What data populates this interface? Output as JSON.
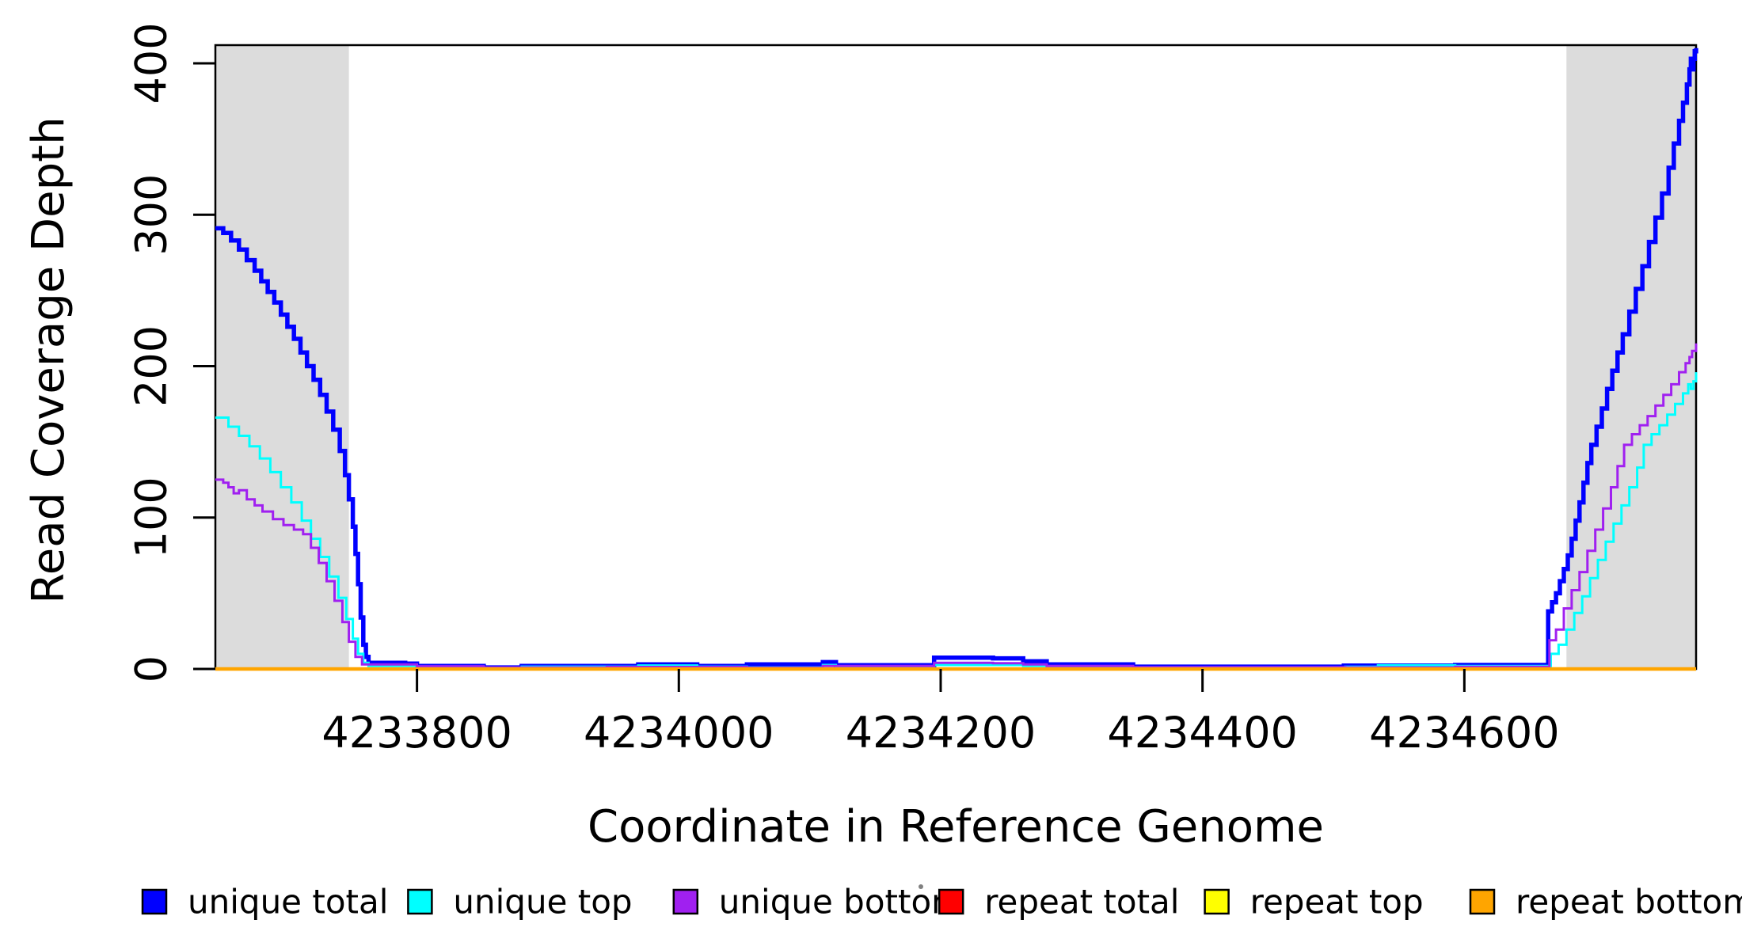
{
  "figure": {
    "background": "#ffffff"
  },
  "chart_data": {
    "type": "line",
    "title": "",
    "xlabel": "Coordinate in Reference Genome",
    "ylabel": "Read Coverage Depth",
    "xlim": [
      4233646,
      4234777
    ],
    "ylim": [
      0,
      412
    ],
    "x_ticks": [
      4233800,
      4234000,
      4234200,
      4234400,
      4234600
    ],
    "y_ticks": [
      0,
      100,
      200,
      300,
      400
    ],
    "grid": false,
    "legend_position": "bottom",
    "box_color": "#000000",
    "shaded_regions": [
      {
        "x0": 4233646,
        "x1": 4233748,
        "color": "#DCDCDC"
      },
      {
        "x0": 4234678,
        "x1": 4234777,
        "color": "#DCDCDC"
      }
    ],
    "series": [
      {
        "name": "unique total",
        "color": "#0000FF",
        "width": 5.5,
        "points": [
          [
            4233646,
            291
          ],
          [
            4233652,
            288
          ],
          [
            4233658,
            283
          ],
          [
            4233664,
            277
          ],
          [
            4233670,
            270
          ],
          [
            4233676,
            263
          ],
          [
            4233681,
            256
          ],
          [
            4233686,
            249
          ],
          [
            4233691,
            242
          ],
          [
            4233696,
            234
          ],
          [
            4233701,
            226
          ],
          [
            4233706,
            218
          ],
          [
            4233711,
            209
          ],
          [
            4233716,
            200
          ],
          [
            4233721,
            191
          ],
          [
            4233726,
            181
          ],
          [
            4233731,
            170
          ],
          [
            4233736,
            158
          ],
          [
            4233741,
            144
          ],
          [
            4233745,
            128
          ],
          [
            4233748,
            112
          ],
          [
            4233751,
            94
          ],
          [
            4233753,
            76
          ],
          [
            4233755,
            56
          ],
          [
            4233757,
            34
          ],
          [
            4233759,
            16
          ],
          [
            4233761,
            8
          ],
          [
            4233763,
            4
          ],
          [
            4233791,
            3.5
          ],
          [
            4233800,
            2
          ],
          [
            4233851,
            1
          ],
          [
            4233880,
            2
          ],
          [
            4233969,
            3
          ],
          [
            4234014,
            2
          ],
          [
            4234052,
            3
          ],
          [
            4234110,
            4.5
          ],
          [
            4234120,
            2.5
          ],
          [
            4234195,
            7.5
          ],
          [
            4234240,
            7
          ],
          [
            4234263,
            5
          ],
          [
            4234281,
            3
          ],
          [
            4234347,
            1.5
          ],
          [
            4234508,
            2.2
          ],
          [
            4234593,
            2.6
          ],
          [
            4234664,
            38
          ],
          [
            4234667,
            44
          ],
          [
            4234670,
            50
          ],
          [
            4234673,
            58
          ],
          [
            4234676,
            66
          ],
          [
            4234679,
            75
          ],
          [
            4234682,
            86
          ],
          [
            4234685,
            98
          ],
          [
            4234688,
            110
          ],
          [
            4234691,
            123
          ],
          [
            4234694,
            136
          ],
          [
            4234697,
            148
          ],
          [
            4234701,
            160
          ],
          [
            4234705,
            172
          ],
          [
            4234709,
            185
          ],
          [
            4234713,
            197
          ],
          [
            4234717,
            209
          ],
          [
            4234721,
            221
          ],
          [
            4234726,
            236
          ],
          [
            4234731,
            251
          ],
          [
            4234736,
            266
          ],
          [
            4234741,
            282
          ],
          [
            4234746,
            298
          ],
          [
            4234751,
            314
          ],
          [
            4234756,
            331
          ],
          [
            4234760,
            347
          ],
          [
            4234764,
            362
          ],
          [
            4234767,
            374
          ],
          [
            4234770,
            386
          ],
          [
            4234772,
            396
          ],
          [
            4234773,
            403
          ],
          [
            4234774,
            396
          ],
          [
            4234775,
            403
          ],
          [
            4234776,
            408
          ],
          [
            4234777,
            410
          ]
        ]
      },
      {
        "name": "unique top",
        "color": "#00FFFF",
        "width": 3,
        "points": [
          [
            4233646,
            166
          ],
          [
            4233656,
            160
          ],
          [
            4233664,
            154
          ],
          [
            4233672,
            147
          ],
          [
            4233680,
            139
          ],
          [
            4233688,
            130
          ],
          [
            4233696,
            120
          ],
          [
            4233704,
            110
          ],
          [
            4233712,
            98
          ],
          [
            4233719,
            86
          ],
          [
            4233726,
            74
          ],
          [
            4233733,
            61
          ],
          [
            4233740,
            47
          ],
          [
            4233746,
            33
          ],
          [
            4233751,
            20
          ],
          [
            4233755,
            10
          ],
          [
            4233759,
            4
          ],
          [
            4233763,
            2
          ],
          [
            4233800,
            1
          ],
          [
            4233851,
            0.5
          ],
          [
            4233880,
            1.5
          ],
          [
            4233969,
            2.3
          ],
          [
            4234014,
            1.5
          ],
          [
            4234052,
            1
          ],
          [
            4234110,
            2.6
          ],
          [
            4234120,
            1.8
          ],
          [
            4234195,
            2.6
          ],
          [
            4234263,
            2
          ],
          [
            4234281,
            1.5
          ],
          [
            4234347,
            0.8
          ],
          [
            4234509,
            1.4
          ],
          [
            4234534,
            2.4
          ],
          [
            4234593,
            2
          ],
          [
            4234666,
            10
          ],
          [
            4234672,
            16
          ],
          [
            4234678,
            26
          ],
          [
            4234684,
            37
          ],
          [
            4234690,
            48
          ],
          [
            4234696,
            60
          ],
          [
            4234702,
            72
          ],
          [
            4234708,
            84
          ],
          [
            4234714,
            96
          ],
          [
            4234720,
            108
          ],
          [
            4234726,
            120
          ],
          [
            4234732,
            133
          ],
          [
            4234737,
            148
          ],
          [
            4234743,
            155
          ],
          [
            4234749,
            161
          ],
          [
            4234755,
            168
          ],
          [
            4234761,
            175
          ],
          [
            4234767,
            182
          ],
          [
            4234771,
            188
          ],
          [
            4234773,
            185
          ],
          [
            4234775,
            190
          ],
          [
            4234777,
            196
          ]
        ]
      },
      {
        "name": "unique bottom",
        "color": "#A020F0",
        "width": 3,
        "points": [
          [
            4233646,
            125
          ],
          [
            4233652,
            123
          ],
          [
            4233656,
            120
          ],
          [
            4233660,
            116
          ],
          [
            4233664,
            118
          ],
          [
            4233670,
            112
          ],
          [
            4233676,
            108
          ],
          [
            4233682,
            104
          ],
          [
            4233690,
            99
          ],
          [
            4233698,
            95
          ],
          [
            4233706,
            92
          ],
          [
            4233713,
            89
          ],
          [
            4233719,
            80
          ],
          [
            4233725,
            70
          ],
          [
            4233731,
            58
          ],
          [
            4233737,
            45
          ],
          [
            4233743,
            31
          ],
          [
            4233748,
            18
          ],
          [
            4233753,
            8
          ],
          [
            4233758,
            3
          ],
          [
            4233763,
            3
          ],
          [
            4233791,
            3
          ],
          [
            4233800,
            1.8
          ],
          [
            4233851,
            1
          ],
          [
            4233945,
            1.3
          ],
          [
            4234052,
            0.8
          ],
          [
            4234110,
            2
          ],
          [
            4234195,
            4
          ],
          [
            4234240,
            3.8
          ],
          [
            4234263,
            3
          ],
          [
            4234281,
            2
          ],
          [
            4234347,
            1.2
          ],
          [
            4234509,
            1
          ],
          [
            4234593,
            1.4
          ],
          [
            4234665,
            19
          ],
          [
            4234670,
            26
          ],
          [
            4234676,
            40
          ],
          [
            4234682,
            52
          ],
          [
            4234688,
            64
          ],
          [
            4234694,
            78
          ],
          [
            4234700,
            92
          ],
          [
            4234706,
            106
          ],
          [
            4234712,
            120
          ],
          [
            4234717,
            134
          ],
          [
            4234722,
            148
          ],
          [
            4234728,
            155
          ],
          [
            4234734,
            161
          ],
          [
            4234740,
            167
          ],
          [
            4234746,
            174
          ],
          [
            4234752,
            181
          ],
          [
            4234758,
            188
          ],
          [
            4234764,
            196
          ],
          [
            4234769,
            202
          ],
          [
            4234772,
            206
          ],
          [
            4234774,
            210
          ],
          [
            4234777,
            215
          ]
        ]
      },
      {
        "name": "repeat total",
        "color": "#FF0000",
        "width": 4,
        "points": [
          [
            4233646,
            0
          ],
          [
            4234777,
            0
          ]
        ]
      },
      {
        "name": "repeat top",
        "color": "#FFFF00",
        "width": 3.5,
        "points": [
          [
            4233646,
            0
          ],
          [
            4234777,
            0
          ]
        ]
      },
      {
        "name": "repeat bottom",
        "color": "#FFA500",
        "width": 4.5,
        "points": [
          [
            4233646,
            0
          ],
          [
            4234777,
            0
          ]
        ]
      }
    ],
    "legend": [
      {
        "label": "unique total",
        "color": "#0000FF"
      },
      {
        "label": "unique top",
        "color": "#00FFFF"
      },
      {
        "label": "unique bottom",
        "color": "#A020F0"
      },
      {
        "label": "repeat total",
        "color": "#FF0000"
      },
      {
        "label": "repeat top",
        "color": "#FFFF00"
      },
      {
        "label": "repeat bottom",
        "color": "#FFA500"
      }
    ]
  }
}
